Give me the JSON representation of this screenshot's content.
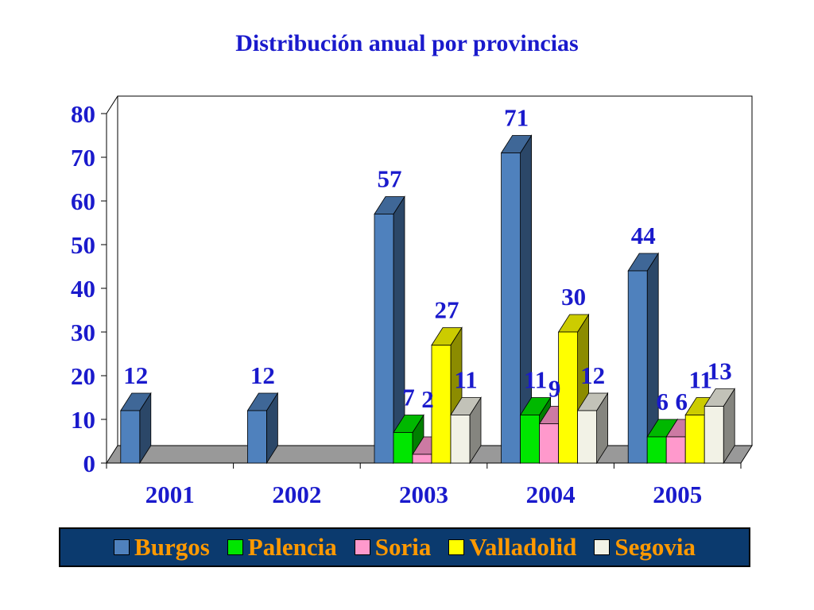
{
  "colors": {
    "title": "#1a1acc",
    "axis_text": "#1a1acc",
    "data_label": "#1a1acc",
    "legend_bg": "#0b3a6e",
    "legend_text": "#ff9900",
    "floor": "#999999",
    "wall": "#ffffff"
  },
  "chart_data": {
    "type": "bar",
    "title": "Distribución anual por provincias",
    "categories": [
      "2001",
      "2002",
      "2003",
      "2004",
      "2005"
    ],
    "ylim": [
      0,
      80
    ],
    "yticks": [
      "0",
      "10",
      "20",
      "30",
      "40",
      "50",
      "60",
      "70",
      "80"
    ],
    "legend_position": "bottom",
    "grid": false,
    "series": [
      {
        "name": "Burgos",
        "color": "#4f81bd",
        "values": [
          12,
          12,
          57,
          71,
          44
        ]
      },
      {
        "name": "Palencia",
        "color": "#00e600",
        "values": [
          null,
          null,
          7,
          11,
          6
        ]
      },
      {
        "name": "Soria",
        "color": "#ff99cc",
        "values": [
          null,
          null,
          2,
          9,
          6
        ]
      },
      {
        "name": "Valladolid",
        "color": "#ffff00",
        "values": [
          null,
          null,
          27,
          30,
          11
        ]
      },
      {
        "name": "Segovia",
        "color": "#f2f2e6",
        "values": [
          null,
          null,
          11,
          12,
          13
        ]
      }
    ]
  }
}
